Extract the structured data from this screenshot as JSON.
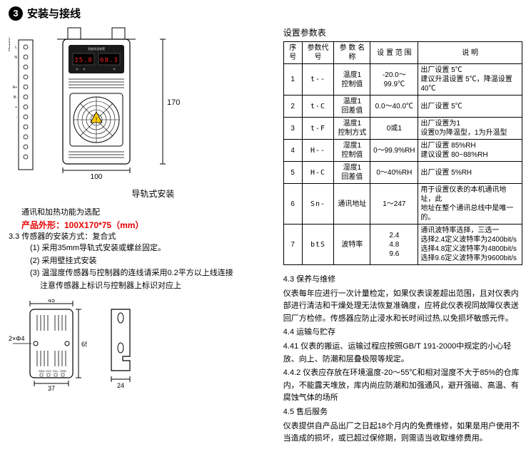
{
  "header": {
    "num": "3",
    "title": "安装与接线"
  },
  "device": {
    "height_label": "170",
    "width_label": "100",
    "mount_label": "导轨式安装",
    "display1": "35.8",
    "display2": "68.3"
  },
  "notes": {
    "line1": "通讯和加热功能为选配",
    "line2": "产品外形：100X170*75（mm）",
    "sec33": "3.3 传感器的安装方式：复合式",
    "item1": "(1) 采用35mm导轨式安装或螺丝固定。",
    "item2": "(2) 采用壁挂式安装",
    "item3": "(3) 温湿度传感器与控制器的连线请采用0.2平方以上线连接",
    "item3b": "注意传感器上标识与控制器上标识对应上"
  },
  "sensor": {
    "conn_label": "2×Φ4",
    "height": "65",
    "width_outer": "45",
    "width_inner": "37",
    "bracket_w": "24"
  },
  "param_table": {
    "title": "设置参数表",
    "headers": [
      "序号",
      "参数代号",
      "参 数 名 称",
      "设 置 范 围",
      "说     明"
    ],
    "rows": [
      [
        "1",
        "t--",
        "温度1\n控制值",
        "-20.0～99.9℃",
        "出厂设置 5℃\n建议升温设置 5℃，降温设置40℃"
      ],
      [
        "2",
        "t-C",
        "温度1\n回差值",
        "0.0～40.0℃",
        "出厂设置 5℃"
      ],
      [
        "3",
        "t-F",
        "温度1\n控制方式",
        "0或1",
        "出厂设置为1\n设置0为降温型，1为升温型"
      ],
      [
        "4",
        "H--",
        "湿度1\n控制值",
        "0～99.9%RH",
        "出厂设置 85%RH\n建议设置 80~88%RH"
      ],
      [
        "5",
        "H-C",
        "湿度1\n回差值",
        "0～40%RH",
        "出厂设置 5%RH"
      ],
      [
        "6",
        "Sn-",
        "通讯地址",
        "1～247",
        "用于设置仪表的本机通讯地址，此\n地址在整个通讯总线中是唯一的。"
      ],
      [
        "7",
        "btS",
        "波特率",
        "2.4\n4.8\n9.6",
        "通讯波特率选择，三选一\n选择2.4定义波特率为2400bit/s\n选择4.8定义波特率为4800bit/s\n选择9.6定义波特率为9600bit/s"
      ]
    ]
  },
  "maintenance": {
    "s43": "4.3 保养与维修",
    "p43": "仪表每年应进行一次计量检定，如果仪表误差超出范围，且对仪表内部进行清洁和干燥处理无法恢复准确度，应将此仪表视同故障仪表送回厂方检修。传感器应防止浸水和长时间过热,以免损坏敏感元件。",
    "s44": "4.4 运输与贮存",
    "p441": "4.41 仪表的搬运、运输过程应按照GB/T 191-2000中规定的小心轻放、向上、防潮和层叠极限等规定。",
    "p442": "4.4.2 仪表应存放在环境温度-20～55℃和相对湿度不大于85%的仓库内，不能露天堆放，库内尚应防潮和加强通风，避开强磁、高温、有腐蚀气体的场所",
    "s45": "4.5 售后服务",
    "p45": "仪表提供自产品出厂之日起18个月内的免费维修，如果是用户使用不当造成的损坏，或已超过保修期，则需适当收取维修费用。"
  }
}
